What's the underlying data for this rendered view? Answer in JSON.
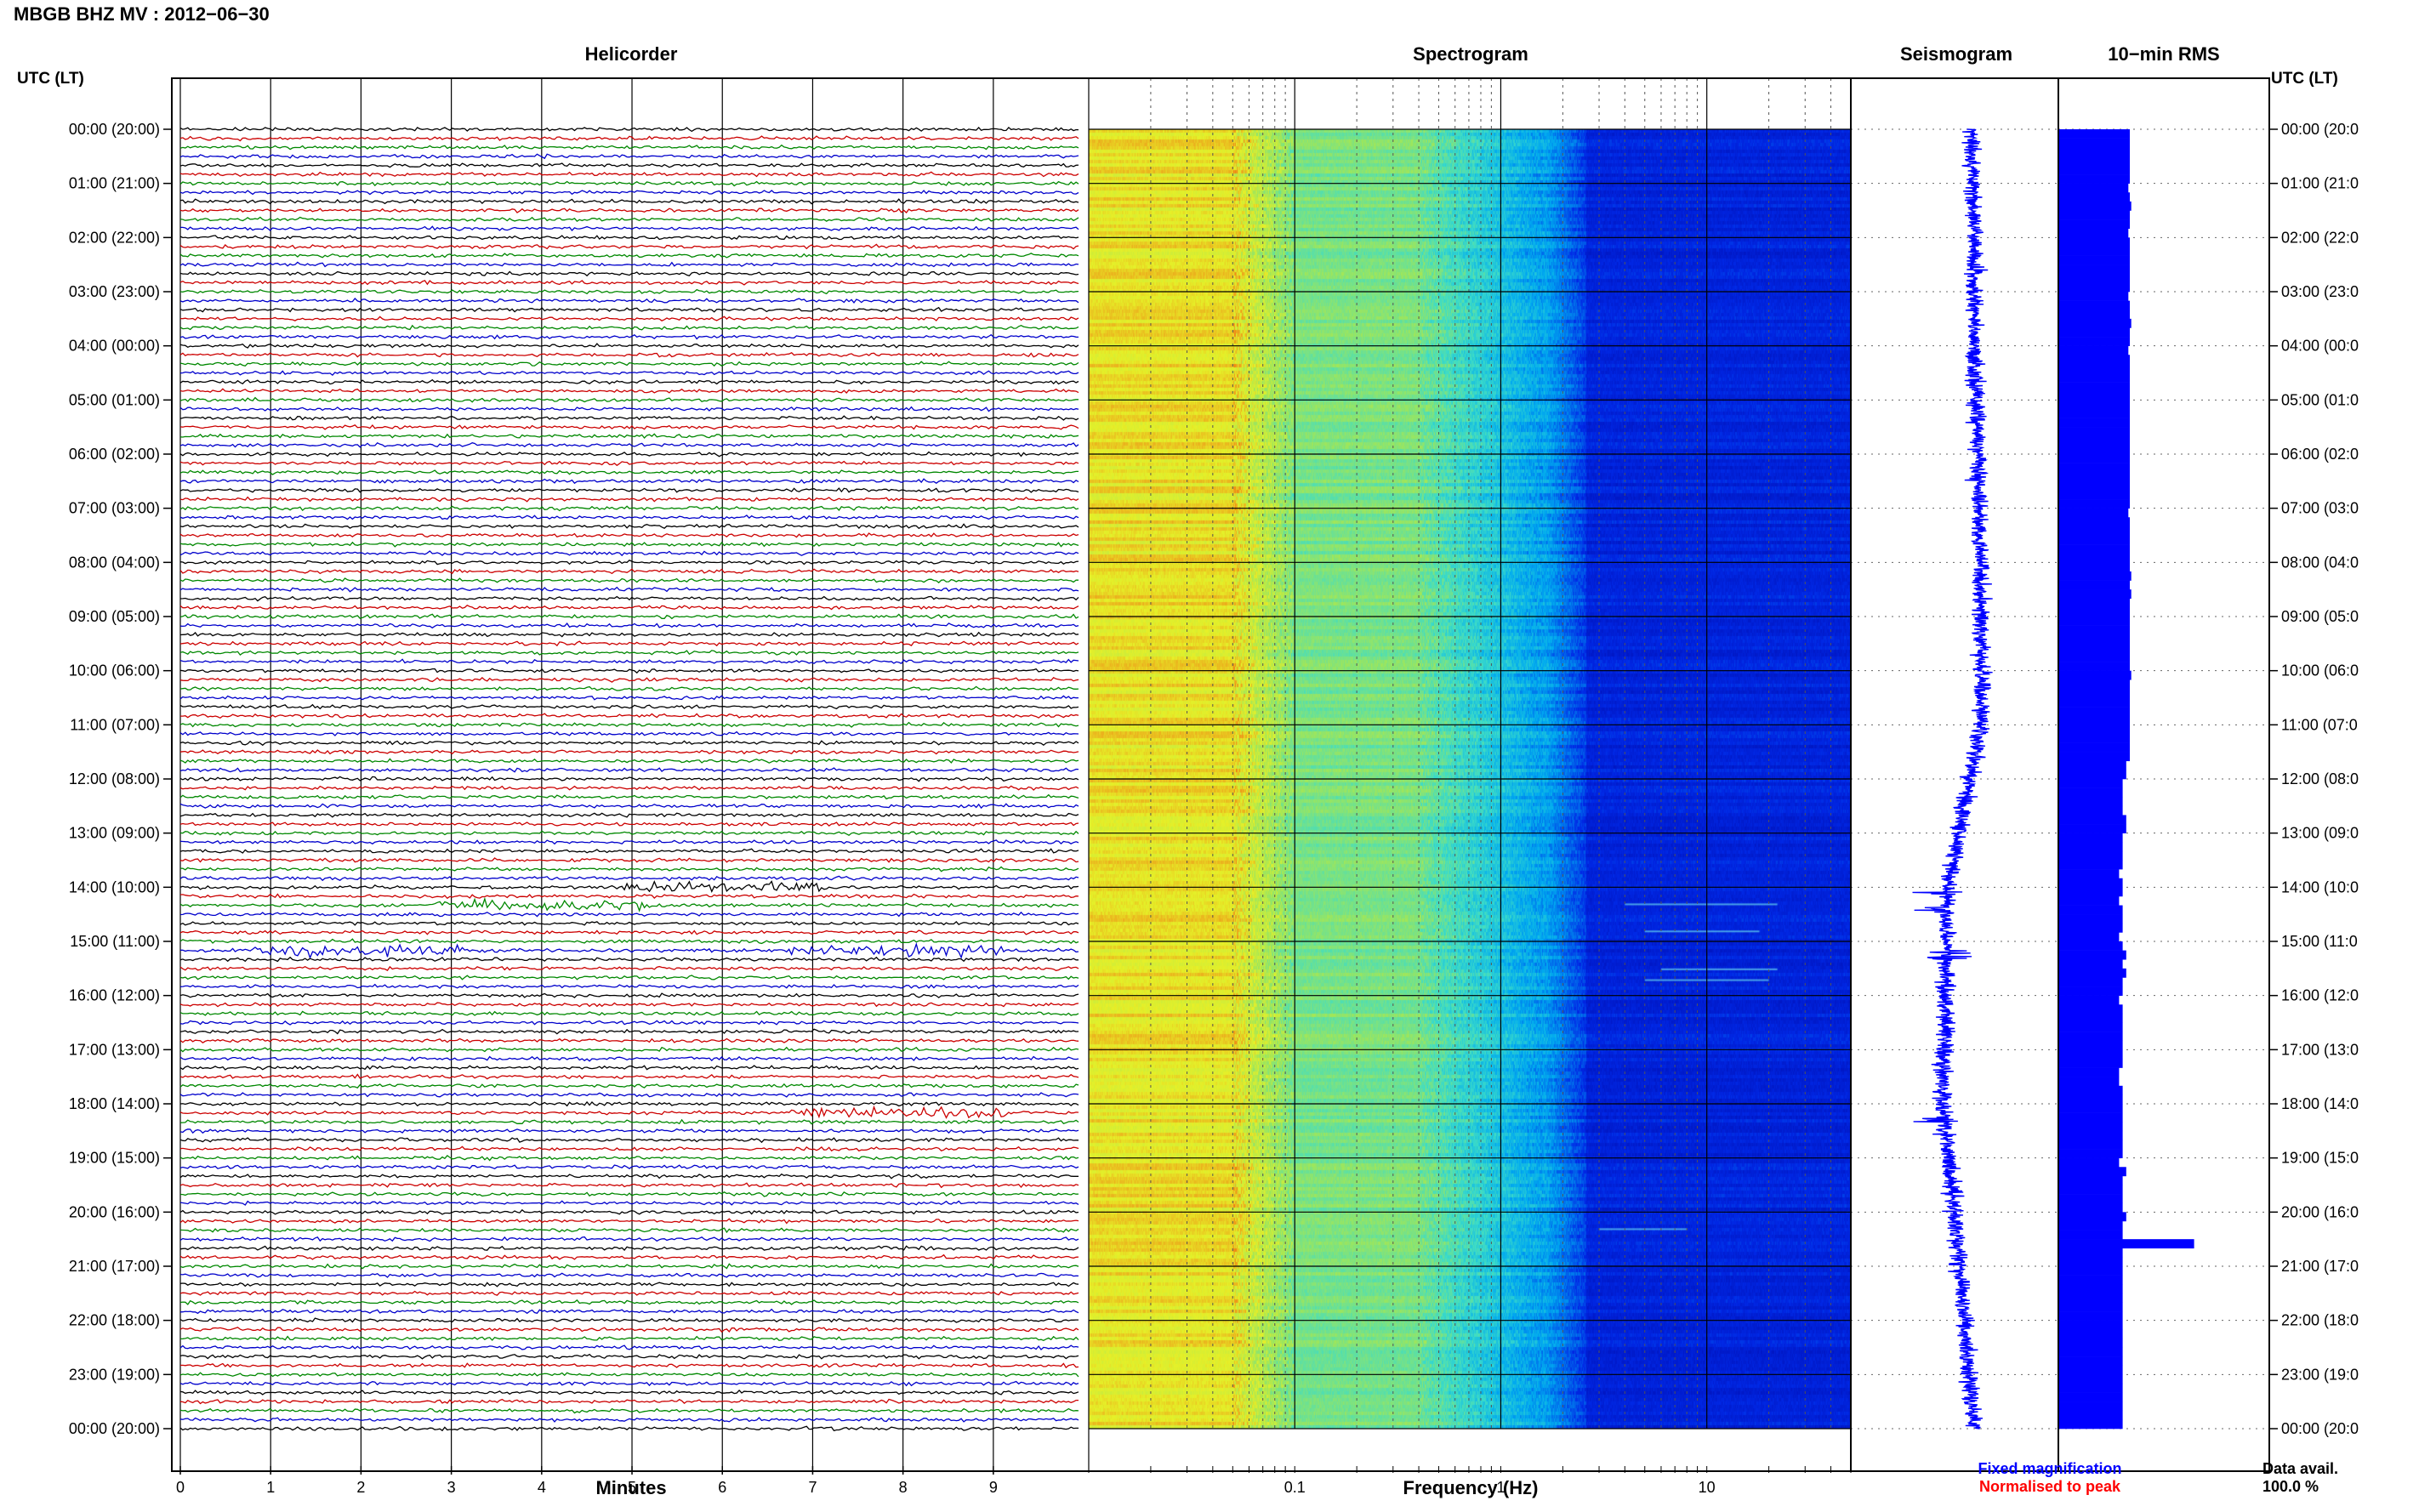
{
  "header": {
    "title": "MBGB BHZ MV : 2012−06−30",
    "utc_lt_left": "UTC (LT)",
    "utc_lt_right": "UTC (LT)"
  },
  "panels": {
    "helicorder": "Helicorder",
    "spectrogram": "Spectrogram",
    "seismogram": "Seismogram",
    "rms": "10−min RMS"
  },
  "axes": {
    "minutes_label": "Minutes",
    "frequency_label": "Frequency (Hz)",
    "minute_ticks": [
      "0",
      "1",
      "2",
      "3",
      "4",
      "5",
      "6",
      "7",
      "8",
      "9"
    ],
    "frequency_ticks": [
      "0.1",
      "1",
      "10"
    ]
  },
  "hours_left": [
    "00:00 (20:00)",
    "01:00 (21:00)",
    "02:00 (22:00)",
    "03:00 (23:00)",
    "04:00 (00:00)",
    "05:00 (01:00)",
    "06:00 (02:00)",
    "07:00 (03:00)",
    "08:00 (04:00)",
    "09:00 (05:00)",
    "10:00 (06:00)",
    "11:00 (07:00)",
    "12:00 (08:00)",
    "13:00 (09:00)",
    "14:00 (10:00)",
    "15:00 (11:00)",
    "16:00 (12:00)",
    "17:00 (13:00)",
    "18:00 (14:00)",
    "19:00 (15:00)",
    "20:00 (16:00)",
    "21:00 (17:00)",
    "22:00 (18:00)",
    "23:00 (19:00)",
    "00:00 (20:00)"
  ],
  "hours_right": [
    "00:00 (20:0",
    "01:00 (21:0",
    "02:00 (22:0",
    "03:00 (23:0",
    "04:00 (00:0",
    "05:00 (01:0",
    "06:00 (02:0",
    "07:00 (03:0",
    "08:00 (04:0",
    "09:00 (05:0",
    "10:00 (06:0",
    "11:00 (07:0",
    "12:00 (08:0",
    "13:00 (09:0",
    "14:00 (10:0",
    "15:00 (11:0",
    "16:00 (12:0",
    "17:00 (13:0",
    "18:00 (14:0",
    "19:00 (15:0",
    "20:00 (16:0",
    "21:00 (17:0",
    "22:00 (18:0",
    "23:00 (19:0",
    "00:00 (20:0"
  ],
  "legend": {
    "fixed": "Fixed magnification",
    "normalised": "Normalised to peak",
    "fixed_color": "#0000ff",
    "normalised_color": "#ff0000"
  },
  "footer": {
    "data_avail_label": "Data avail.",
    "data_avail_value": "100.0 %"
  },
  "colors": {
    "trace_cycle": [
      "#000000",
      "#cc0000",
      "#008800",
      "#0000cc"
    ],
    "rms_fill": "#0000ff",
    "seismo": "#0000ff"
  },
  "chart_data": {
    "type": "heatmap",
    "title": "MBGB BHZ MV : 2012−06−30",
    "helicorder": {
      "rows_per_hour": 6,
      "minutes_per_row": 10,
      "events_utc_hours": [
        14.1,
        14.4,
        15.2,
        15.3,
        18.3
      ]
    },
    "spectrogram": {
      "xscale": "log",
      "xlim_hz": [
        0.01,
        50
      ],
      "xlabel": "Frequency (Hz)"
    },
    "rms_10min": {
      "values": [
        1.0,
        1.0,
        1.0,
        1.0,
        1.0,
        1.0,
        0.98,
        1.0,
        1.02,
        1.0,
        1.0,
        0.98,
        1.0,
        1.0,
        1.0,
        1.0,
        1.0,
        1.0,
        0.98,
        1.0,
        1.0,
        1.02,
        1.0,
        1.0,
        0.98,
        1.0,
        1.0,
        1.0,
        1.0,
        1.0,
        1.0,
        1.0,
        1.0,
        1.0,
        1.0,
        1.0,
        1.0,
        1.0,
        1.0,
        1.0,
        1.0,
        1.0,
        0.98,
        1.0,
        1.0,
        1.0,
        1.0,
        1.0,
        1.0,
        1.02,
        1.0,
        1.02,
        1.0,
        1.0,
        1.0,
        1.0,
        1.0,
        1.0,
        1.0,
        1.0,
        1.02,
        1.0,
        1.0,
        1.0,
        1.0,
        1.0,
        1.0,
        1.0,
        1.0,
        1.0,
        0.95,
        0.95,
        0.9,
        0.9,
        0.9,
        0.9,
        0.95,
        0.95,
        0.9,
        0.9,
        0.9,
        0.9,
        0.85,
        0.9,
        0.9,
        0.85,
        0.9,
        0.9,
        0.9,
        0.85,
        0.9,
        0.95,
        0.9,
        0.95,
        0.9,
        0.9,
        0.85,
        0.9,
        0.9,
        0.9,
        0.9,
        0.9,
        0.9,
        0.9,
        0.85,
        0.85,
        0.9,
        0.9,
        0.9,
        0.9,
        0.9,
        0.9,
        0.9,
        0.9,
        0.85,
        0.95,
        0.9,
        0.9,
        0.9,
        0.9,
        0.95,
        0.9,
        0.9,
        1.9,
        0.9,
        0.9,
        0.9,
        0.9,
        0.9,
        0.9,
        0.9,
        0.9,
        0.9,
        0.9,
        0.9,
        0.9,
        0.9,
        0.9,
        0.9,
        0.9,
        0.9,
        0.9,
        0.9,
        0.9
      ]
    },
    "seismogram_offset": {
      "note_hours": [
        0,
        4,
        8,
        11,
        14,
        18,
        22,
        24
      ],
      "offset": [
        0.3,
        0.4,
        0.55,
        0.6,
        -0.4,
        -0.55,
        0.1,
        0.35
      ]
    }
  }
}
